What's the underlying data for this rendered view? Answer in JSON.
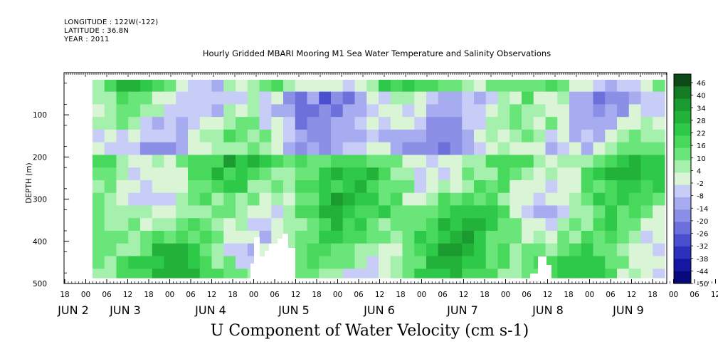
{
  "header": {
    "longitude": "LONGITUDE : 122W(-122)",
    "latitude": "LATITUDE : 36.8N",
    "year": "YEAR : 2011"
  },
  "chart_data": {
    "type": "heatmap",
    "title": "Hourly Gridded MBARI Mooring M1 Sea Water Temperature and Salinity Observations",
    "xlabel": "",
    "ylabel": "DEPTH (m)",
    "bottom_title": "U Component of Water Velocity (cm s-1)",
    "ylim": [
      500,
      0
    ],
    "y_ticks": [
      100,
      200,
      300,
      400,
      500
    ],
    "x_hour_labels": [
      "18",
      "00",
      "06",
      "12",
      "18",
      "00",
      "06",
      "12",
      "18",
      "00",
      "06",
      "12",
      "18",
      "00",
      "06",
      "12",
      "18",
      "00",
      "06",
      "12",
      "18",
      "00",
      "06",
      "12",
      "18",
      "00",
      "06",
      "12",
      "18",
      "00",
      "06",
      "12",
      "18"
    ],
    "x_day_labels": [
      {
        "month": "JUN",
        "day": "2"
      },
      {
        "month": "JUN",
        "day": "3"
      },
      {
        "month": "JUN",
        "day": "4"
      },
      {
        "month": "JUN",
        "day": "5"
      },
      {
        "month": "JUN",
        "day": "6"
      },
      {
        "month": "JUN",
        "day": "7"
      },
      {
        "month": "JUN",
        "day": "8"
      },
      {
        "month": "JUN",
        "day": "9"
      }
    ],
    "colorbar_labels": [
      "46",
      "40",
      "34",
      "28",
      "22",
      "16",
      "10",
      "4",
      "-2",
      "-8",
      "-14",
      "-20",
      "-26",
      "-32",
      "-38",
      "-44",
      "-50"
    ],
    "colorbar_colors": [
      "#0d4a17",
      "#147a24",
      "#1a9a2f",
      "#22b23a",
      "#2fc94a",
      "#48d85c",
      "#6ae57a",
      "#a6f0ae",
      "#d9f5d6",
      "#c8cdf7",
      "#a7acf0",
      "#8b8fe6",
      "#6b70db",
      "#4a4fd0",
      "#2b30bd",
      "#1418a0",
      "#08097a"
    ],
    "depth_rows": [
      30,
      60,
      90,
      120,
      150,
      180,
      210,
      240,
      270,
      300,
      330,
      360,
      390,
      420,
      450,
      480
    ],
    "time_columns": 48,
    "u_grid_pattern_note": "",
    "value_bands": [
      {
        "depth_range": [
          20,
          60
        ],
        "u": 6
      },
      {
        "depth_range": [
          60,
          200
        ],
        "u": -8
      },
      {
        "depth_range": [
          200,
          490
        ],
        "u": 10
      }
    ]
  }
}
